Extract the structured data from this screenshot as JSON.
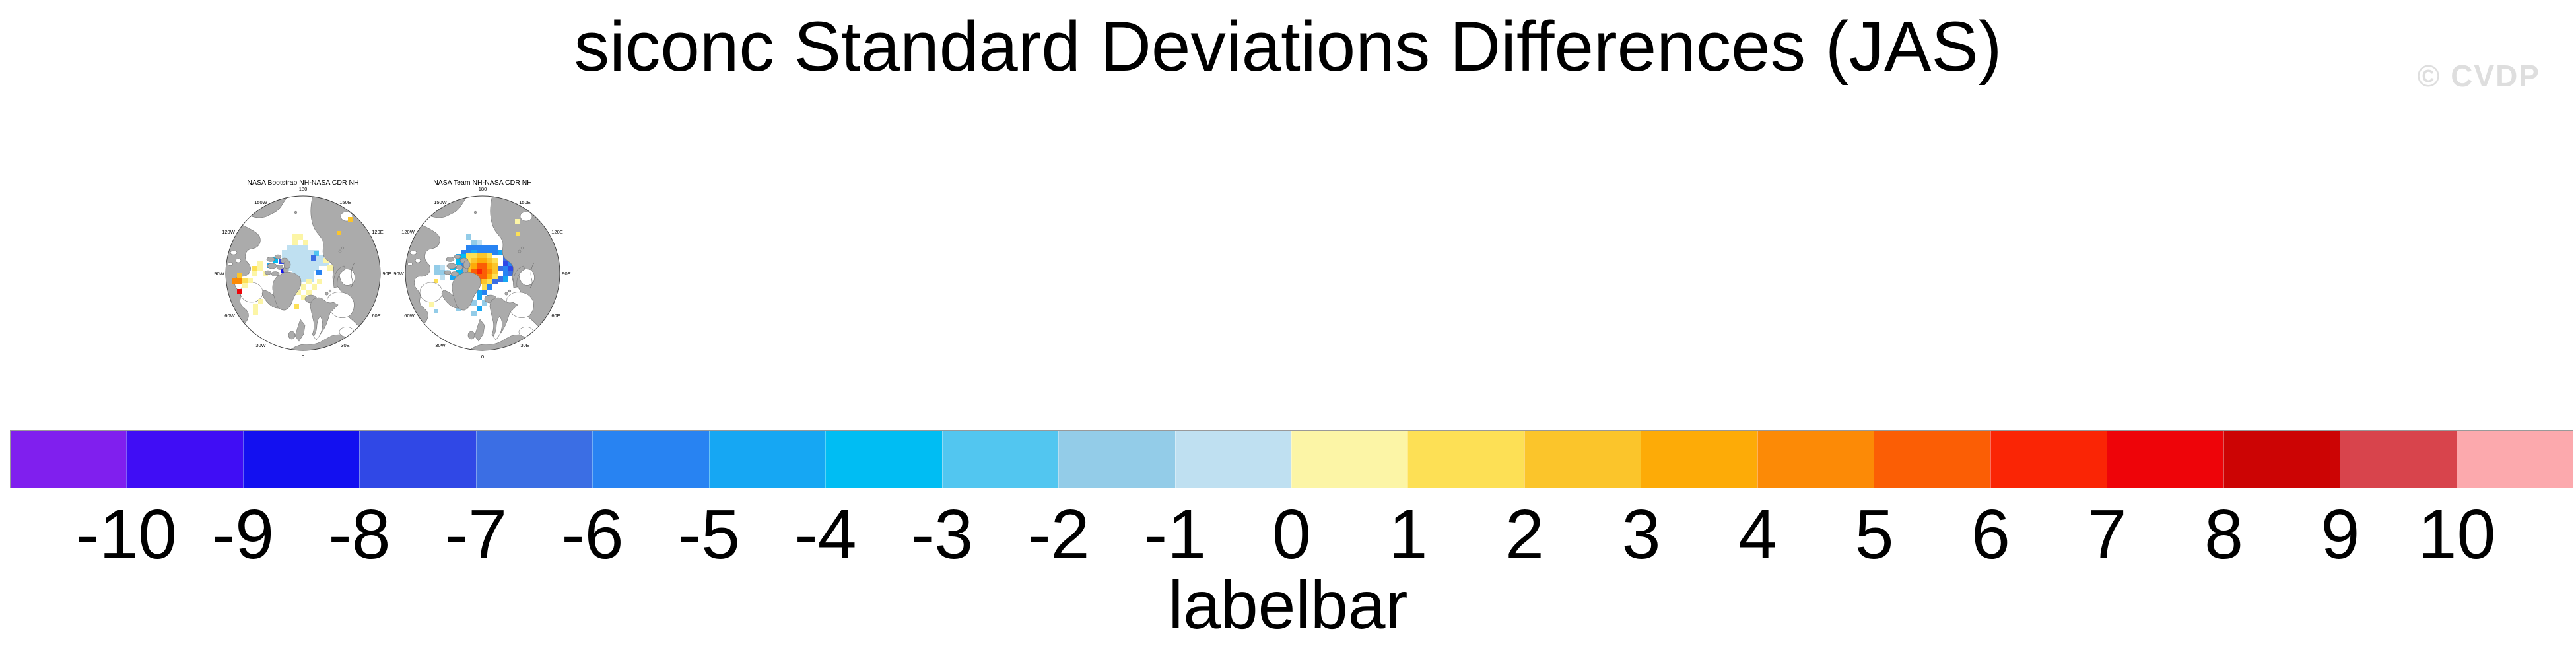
{
  "page": {
    "background_color": "#FFFFFF"
  },
  "header": {
    "title": "siconc Standard Deviations Differences (JAS)",
    "watermark": "© CVDP"
  },
  "panels": [
    {
      "title": "NASA Bootstrap NH-NASA CDR NH",
      "lon_labels": [
        "180",
        "150W",
        "150E",
        "120W",
        "120E",
        "90W",
        "90E",
        "60W",
        "60E",
        "30W",
        "30E",
        "0"
      ],
      "cells": [
        [
          111,
          109,
          10
        ],
        [
          119,
          109,
          10
        ],
        [
          127,
          109,
          10
        ],
        [
          135,
          109,
          10
        ],
        [
          103,
          117,
          10
        ],
        [
          111,
          117,
          10
        ],
        [
          119,
          117,
          10
        ],
        [
          127,
          117,
          10
        ],
        [
          135,
          117,
          10
        ],
        [
          143,
          117,
          10
        ],
        [
          151,
          117,
          10
        ],
        [
          103,
          125,
          10
        ],
        [
          111,
          125,
          10
        ],
        [
          119,
          125,
          10
        ],
        [
          127,
          125,
          10
        ],
        [
          135,
          125,
          10
        ],
        [
          143,
          125,
          10
        ],
        [
          151,
          125,
          10
        ],
        [
          159,
          125,
          10
        ],
        [
          111,
          133,
          10
        ],
        [
          119,
          133,
          10
        ],
        [
          127,
          133,
          10
        ],
        [
          135,
          133,
          10
        ],
        [
          143,
          133,
          10
        ],
        [
          151,
          133,
          10
        ],
        [
          159,
          133,
          10
        ],
        [
          167,
          133,
          10
        ],
        [
          111,
          141,
          10
        ],
        [
          119,
          141,
          10
        ],
        [
          127,
          141,
          10
        ],
        [
          135,
          141,
          10
        ],
        [
          143,
          141,
          10
        ],
        [
          151,
          141,
          10
        ],
        [
          119,
          149,
          10
        ],
        [
          127,
          149,
          10
        ],
        [
          135,
          149,
          10
        ],
        [
          143,
          149,
          10
        ],
        [
          127,
          157,
          10
        ],
        [
          135,
          157,
          10
        ],
        [
          143,
          157,
          10
        ],
        [
          151,
          118,
          8
        ],
        [
          89,
          128,
          7
        ],
        [
          81,
          136,
          6
        ],
        [
          99,
          130,
          3
        ],
        [
          101,
          144,
          2
        ],
        [
          155,
          147,
          5
        ],
        [
          147,
          125,
          4
        ],
        [
          107,
          133,
          0,
          5,
          5
        ],
        [
          113,
          157,
          0,
          5,
          5
        ],
        [
          119,
          93,
          11
        ],
        [
          127,
          93,
          11
        ],
        [
          119,
          101,
          11
        ],
        [
          135,
          101,
          11
        ],
        [
          166,
          129,
          11
        ],
        [
          172,
          140,
          11
        ],
        [
          124,
          161,
          11
        ],
        [
          140,
          161,
          11
        ],
        [
          156,
          161,
          11
        ],
        [
          116,
          169,
          11
        ],
        [
          132,
          169,
          11
        ],
        [
          148,
          169,
          11
        ],
        [
          124,
          177,
          11
        ],
        [
          140,
          177,
          11
        ],
        [
          132,
          185,
          11
        ],
        [
          66,
          141,
          11
        ],
        [
          58,
          149,
          11
        ],
        [
          74,
          149,
          11
        ],
        [
          66,
          133,
          11
        ],
        [
          58,
          141,
          12
        ],
        [
          121,
          198,
          12
        ],
        [
          106,
          193,
          13
        ],
        [
          35,
          151,
          13,
          8,
          8,
          1
        ],
        [
          43,
          159,
          12,
          8,
          8,
          1
        ],
        [
          51,
          159,
          11,
          8,
          8,
          1
        ],
        [
          43,
          167,
          11,
          8,
          8,
          1
        ],
        [
          27,
          159,
          15,
          16,
          10,
          1
        ],
        [
          35,
          176,
          18,
          7,
          7,
          1
        ],
        [
          59,
          199,
          11,
          8,
          8,
          1
        ],
        [
          59,
          207,
          11,
          8,
          8,
          1
        ],
        [
          67,
          191,
          11,
          8,
          8,
          1
        ],
        [
          203,
          67,
          13,
          8,
          8,
          1
        ],
        [
          186,
          88,
          13,
          6,
          6,
          1
        ]
      ]
    },
    {
      "title": "NASA Team NH-NASA CDR NH",
      "lon_labels": [
        "180",
        "150W",
        "150E",
        "120W",
        "120E",
        "90W",
        "90E",
        "60W",
        "60E",
        "30W",
        "30E",
        "0"
      ],
      "cells": [
        [
          110,
          93,
          9
        ],
        [
          118,
          101,
          9
        ],
        [
          126,
          101,
          10
        ],
        [
          110,
          109,
          5
        ],
        [
          118,
          109,
          5
        ],
        [
          126,
          109,
          5
        ],
        [
          134,
          109,
          5
        ],
        [
          142,
          109,
          5
        ],
        [
          150,
          109,
          5
        ],
        [
          102,
          117,
          5
        ],
        [
          110,
          117,
          5
        ],
        [
          118,
          117,
          6
        ],
        [
          126,
          117,
          5
        ],
        [
          134,
          117,
          5
        ],
        [
          142,
          117,
          5
        ],
        [
          150,
          117,
          5
        ],
        [
          158,
          117,
          6
        ],
        [
          166,
          117,
          4
        ],
        [
          166,
          125,
          4
        ],
        [
          174,
          133,
          5
        ],
        [
          166,
          133,
          3
        ],
        [
          158,
          141,
          4
        ],
        [
          166,
          141,
          5
        ],
        [
          174,
          141,
          3
        ],
        [
          174,
          149,
          4
        ],
        [
          166,
          149,
          5
        ],
        [
          158,
          157,
          4
        ],
        [
          166,
          157,
          6
        ],
        [
          110,
          121,
          12
        ],
        [
          118,
          121,
          12
        ],
        [
          126,
          121,
          13
        ],
        [
          134,
          121,
          13
        ],
        [
          142,
          121,
          12
        ],
        [
          110,
          129,
          12
        ],
        [
          118,
          129,
          13
        ],
        [
          126,
          129,
          14
        ],
        [
          134,
          129,
          14
        ],
        [
          142,
          129,
          13
        ],
        [
          150,
          129,
          12
        ],
        [
          110,
          137,
          13
        ],
        [
          118,
          137,
          14
        ],
        [
          126,
          137,
          16
        ],
        [
          134,
          137,
          16
        ],
        [
          142,
          137,
          14
        ],
        [
          150,
          137,
          13
        ],
        [
          110,
          145,
          13
        ],
        [
          118,
          145,
          16
        ],
        [
          126,
          145,
          17
        ],
        [
          134,
          145,
          16
        ],
        [
          142,
          145,
          15
        ],
        [
          150,
          145,
          13
        ],
        [
          118,
          153,
          14
        ],
        [
          126,
          153,
          16
        ],
        [
          134,
          153,
          16
        ],
        [
          142,
          153,
          14
        ],
        [
          150,
          153,
          12
        ],
        [
          126,
          161,
          14
        ],
        [
          134,
          161,
          13
        ],
        [
          142,
          161,
          12
        ],
        [
          134,
          169,
          12
        ],
        [
          102,
          137,
          5
        ],
        [
          102,
          145,
          6
        ],
        [
          110,
          161,
          5
        ],
        [
          118,
          169,
          5
        ],
        [
          126,
          177,
          6
        ],
        [
          134,
          177,
          5
        ],
        [
          142,
          169,
          5
        ],
        [
          150,
          161,
          4
        ],
        [
          126,
          185,
          6
        ],
        [
          118,
          193,
          9
        ],
        [
          134,
          193,
          9
        ],
        [
          110,
          185,
          9
        ],
        [
          142,
          185,
          6
        ],
        [
          126,
          201,
          6
        ],
        [
          118,
          209,
          9
        ],
        [
          94,
          201,
          9
        ],
        [
          86,
          193,
          9
        ],
        [
          62,
          206,
          9,
          6,
          6
        ],
        [
          62,
          139,
          9
        ],
        [
          70,
          139,
          10
        ],
        [
          62,
          147,
          9
        ],
        [
          70,
          147,
          9
        ],
        [
          78,
          147,
          10
        ],
        [
          70,
          155,
          10
        ],
        [
          62,
          161,
          12,
          6,
          6
        ],
        [
          86,
          139,
          7
        ],
        [
          94,
          147,
          7
        ],
        [
          86,
          155,
          6
        ],
        [
          94,
          131,
          7
        ],
        [
          102,
          123,
          7
        ],
        [
          94,
          123,
          6
        ],
        [
          54,
          195,
          11,
          8,
          8,
          1
        ],
        [
          184,
          70,
          11,
          8,
          8,
          1
        ],
        [
          186,
          90,
          12,
          6,
          6,
          1
        ]
      ]
    }
  ],
  "labelbar": {
    "title": "labelbar",
    "tick_labels": [
      "-10",
      "-9",
      "-8",
      "-7",
      "-6",
      "-5",
      "-4",
      "-3",
      "-2",
      "-1",
      "0",
      "1",
      "2",
      "3",
      "4",
      "5",
      "6",
      "7",
      "8",
      "9",
      "10"
    ],
    "colors": [
      "#801FEE",
      "#400DF5",
      "#1310F0",
      "#3048E6",
      "#3B6EE4",
      "#2883F2",
      "#16A7F3",
      "#00BDF3",
      "#52C6F0",
      "#93CCE8",
      "#BFE0F1",
      "#FCF5A6",
      "#FDE055",
      "#FBC52B",
      "#FDAB07",
      "#FC8A06",
      "#FB5E05",
      "#FA2505",
      "#EE0409",
      "#CC0404",
      "#D8444C",
      "#FCA9AD"
    ]
  },
  "chart_data": {
    "type": "heatmap",
    "subtype": "polar_stereographic_difference_maps",
    "title": "siconc Standard Deviations Differences (JAS)",
    "panels": [
      {
        "title": "NASA Bootstrap NH-NASA CDR NH",
        "summary": "Pale blue (-1 to 0) field over the central Arctic Ocean; scattered pale yellow (0 to +1) patches around the Canadian Archipelago, Baffin Bay and south of the pole; isolated gold/orange (+2 to +5) and one red (+7 to +8) cell west of Hudson Bay; purple (<-10) and deep blue (-9 to -7) specks in the archipelago channels; two gold cells near the East Siberian coast."
      },
      {
        "title": "NASA Team NH-NASA CDR NH",
        "summary": "Core of orange/dark-orange (+4 to +7) cells just off the pole toward the Siberian side, ringed by yellow/gold (+1 to +3), surrounded by a broad ring of blue (-7 to -4) cells; light blue (-2 to -1) fringes toward Foxe Basin, Baffin Bay and the Greenland Sea; pale yellow singles near the East Siberian coast and Hudson Bay."
      }
    ],
    "colorbar": {
      "label": "labelbar",
      "tick_values": [
        -10,
        -9,
        -8,
        -7,
        -6,
        -5,
        -4,
        -3,
        -2,
        -1,
        0,
        1,
        2,
        3,
        4,
        5,
        6,
        7,
        8,
        9,
        10
      ],
      "n_boxes": 22,
      "colors": [
        "#801FEE",
        "#400DF5",
        "#1310F0",
        "#3048E6",
        "#3B6EE4",
        "#2883F2",
        "#16A7F3",
        "#00BDF3",
        "#52C6F0",
        "#93CCE8",
        "#BFE0F1",
        "#FCF5A6",
        "#FDE055",
        "#FBC52B",
        "#FDAB07",
        "#FC8A06",
        "#FB5E05",
        "#FA2505",
        "#EE0409",
        "#CC0404",
        "#D8444C",
        "#FCA9AD"
      ]
    }
  }
}
